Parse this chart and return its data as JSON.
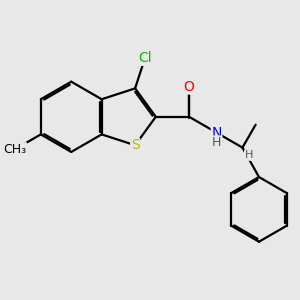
{
  "background_color": "#e8e8e8",
  "atom_colors": {
    "C": "#000000",
    "Cl": "#00bb00",
    "O": "#ff0000",
    "N": "#0000ee",
    "S": "#bbbb00",
    "H": "#555555"
  },
  "bond_color": "#000000",
  "bond_width": 1.6,
  "font_size": 10,
  "figsize": [
    3.0,
    3.0
  ],
  "dpi": 100
}
